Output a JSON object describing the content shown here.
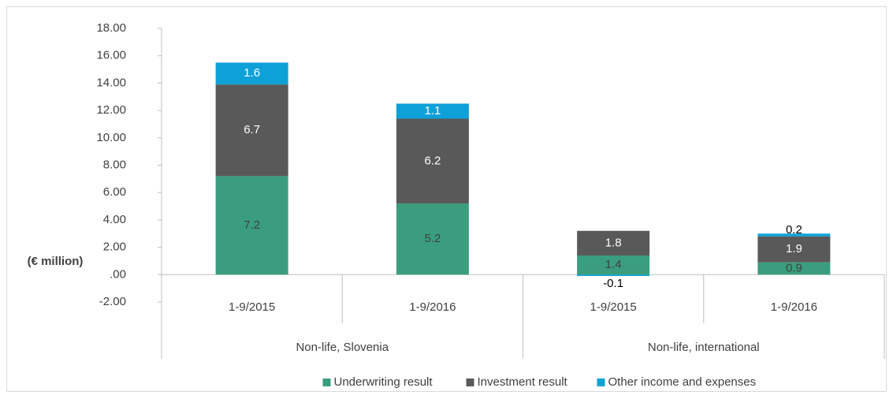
{
  "chart_data": {
    "type": "stacked_bar",
    "y_axis_label": "(€ million)",
    "categories": [
      "1-9/2015",
      "1-9/2016",
      "1-9/2015",
      "1-9/2016"
    ],
    "groups": [
      "Non-life, Slovenia",
      "Non-life, international"
    ],
    "series": [
      {
        "name": "Underwriting result",
        "color": "#3a9e7e",
        "values": [
          7.2,
          5.2,
          1.4,
          0.9
        ]
      },
      {
        "name": "Investment result",
        "color": "#595959",
        "values": [
          6.7,
          6.2,
          1.8,
          1.9
        ]
      },
      {
        "name": "Other income and expenses",
        "color": "#0ea1d8",
        "values": [
          1.6,
          1.1,
          -0.1,
          0.2
        ]
      }
    ],
    "ylim": [
      -2,
      18
    ],
    "yticks": [
      {
        "value": -2,
        "label": "-2.00"
      },
      {
        "value": 0,
        "label": ".00"
      },
      {
        "value": 2,
        "label": "2.00"
      },
      {
        "value": 4,
        "label": "4.00"
      },
      {
        "value": 6,
        "label": "6.00"
      },
      {
        "value": 8,
        "label": "8.00"
      },
      {
        "value": 10,
        "label": "10.00"
      },
      {
        "value": 12,
        "label": "12.00"
      },
      {
        "value": 14,
        "label": "14.00"
      },
      {
        "value": 16,
        "label": "16.00"
      },
      {
        "value": 18,
        "label": "18.00"
      }
    ],
    "legend": "bottom"
  }
}
